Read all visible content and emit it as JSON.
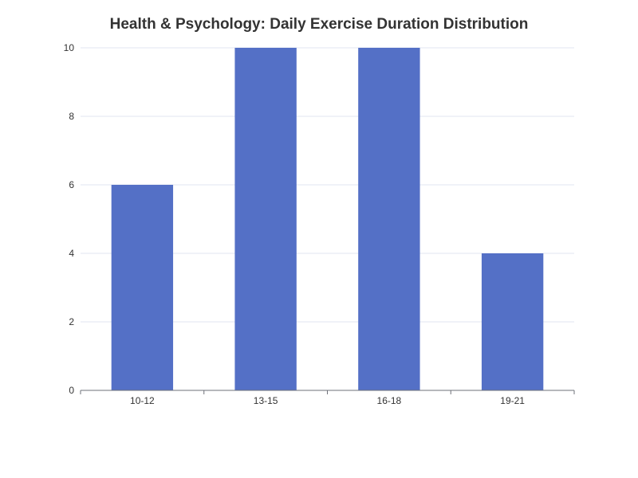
{
  "chart_data": {
    "type": "bar",
    "title": "Health & Psychology: Daily Exercise Duration Distribution",
    "xlabel": "",
    "ylabel": "",
    "categories": [
      "10-12",
      "13-15",
      "16-18",
      "19-21"
    ],
    "values": [
      6,
      10,
      10,
      4
    ],
    "ylim": [
      0,
      10
    ],
    "yticks": [
      0,
      2,
      4,
      6,
      8,
      10
    ],
    "grid": true,
    "legend": "none",
    "colors": {
      "bar": "#5470c6",
      "grid": "#e0e6f1",
      "axis": "#6e7079",
      "text": "#333333"
    }
  }
}
